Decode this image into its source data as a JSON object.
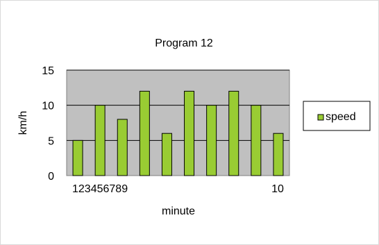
{
  "chart_data": {
    "type": "bar",
    "title": "Program 12",
    "xlabel": "minute",
    "ylabel": "km/h",
    "categories": [
      "1",
      "2",
      "3",
      "4",
      "5",
      "6",
      "7",
      "8",
      "9",
      "10"
    ],
    "series": [
      {
        "name": "speed",
        "values": [
          5,
          10,
          8,
          12,
          6,
          12,
          10,
          12,
          10,
          6
        ]
      }
    ],
    "ylim": [
      0,
      15
    ],
    "yticks": [
      0,
      5,
      10,
      15
    ],
    "xtick_labels_shown": [
      "123456789",
      "10"
    ],
    "grid": true,
    "legend_position": "right",
    "colors": {
      "bar_fill": "#99CC33",
      "bar_stroke": "#000000",
      "plot_background": "#C0C0C0",
      "frame_border": "#d9d9d9"
    }
  }
}
